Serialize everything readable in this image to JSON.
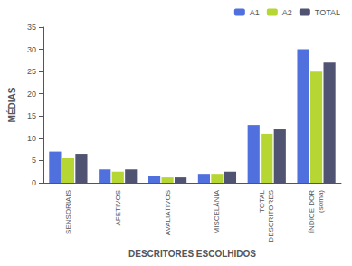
{
  "chart_data": {
    "type": "bar",
    "xlabel": "DESCRITORES ESCOLHIDOS",
    "ylabel": "MÉDIAS",
    "categories": [
      "SENSORIAIS",
      "AFETIVOS",
      "AVALIATIVOS",
      "MISCELÂNIA",
      "TOTAL\nDESCRITORES",
      "ÍNDICE DOR\n(soma)"
    ],
    "series": [
      {
        "name": "A1",
        "values": [
          7,
          3,
          1.5,
          2,
          13,
          30
        ]
      },
      {
        "name": "A2",
        "values": [
          5.5,
          2.5,
          1.2,
          2,
          11,
          25
        ]
      },
      {
        "name": "TOTAL",
        "values": [
          6.5,
          3,
          1.2,
          2.5,
          12,
          27
        ]
      }
    ],
    "ylim": [
      0,
      35
    ],
    "yticks": [
      0,
      5,
      10,
      15,
      20,
      25,
      30,
      35
    ],
    "grid": false,
    "legend": "upper right"
  }
}
